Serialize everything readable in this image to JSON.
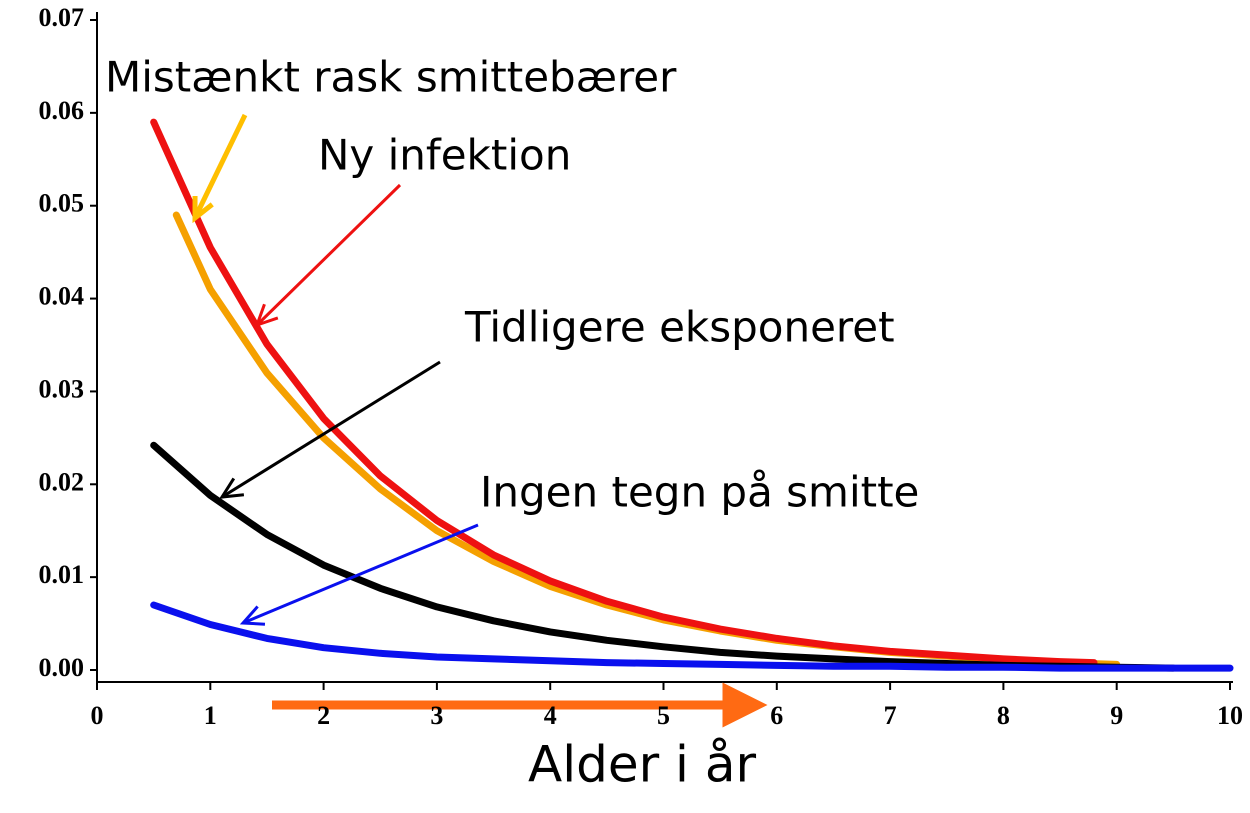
{
  "chart_data": {
    "type": "line",
    "xlabel": "Alder i år",
    "xlim": [
      0,
      10
    ],
    "xticks": [
      0,
      1,
      2,
      3,
      4,
      5,
      6,
      7,
      8,
      9,
      10
    ],
    "ylim": [
      0,
      0.07
    ],
    "yticks": [
      {
        "value": 0,
        "label": "0.00"
      },
      {
        "value": 0.01,
        "label": "0.01"
      },
      {
        "value": 0.02,
        "label": "0.02"
      },
      {
        "value": 0.03,
        "label": "0.03"
      },
      {
        "value": 0.04,
        "label": "0.04"
      },
      {
        "value": 0.05,
        "label": "0.05"
      },
      {
        "value": 0.06,
        "label": "0.06"
      },
      {
        "value": 0.07,
        "label": "0.07"
      }
    ],
    "series": [
      {
        "name": "Mistænkt rask smittebærer",
        "color": "#f5a000",
        "x": [
          0.7,
          1,
          1.5,
          2,
          2.5,
          3,
          3.5,
          4,
          4.5,
          5,
          5.5,
          6,
          6.5,
          7,
          7.5,
          8,
          8.5,
          9
        ],
        "values": [
          0.049,
          0.041,
          0.032,
          0.025,
          0.0195,
          0.015,
          0.0117,
          0.009,
          0.007,
          0.0054,
          0.0042,
          0.0032,
          0.0025,
          0.0019,
          0.0015,
          0.0011,
          0.0008,
          0.0006
        ]
      },
      {
        "name": "Ny infektion",
        "color": "#ee1111",
        "x": [
          0.5,
          1,
          1.5,
          2,
          2.5,
          3,
          3.5,
          4,
          4.5,
          5,
          5.5,
          6,
          6.5,
          7,
          7.5,
          8,
          8.5,
          8.8
        ],
        "values": [
          0.059,
          0.0455,
          0.0351,
          0.0271,
          0.0209,
          0.0161,
          0.0124,
          0.0096,
          0.0074,
          0.0057,
          0.0044,
          0.0034,
          0.0026,
          0.002,
          0.0016,
          0.0012,
          0.0009,
          0.0008
        ]
      },
      {
        "name": "Tidligere eksponeret",
        "color": "#000000",
        "x": [
          0.5,
          1,
          1.5,
          2,
          2.5,
          3,
          3.5,
          4,
          4.5,
          5,
          5.5,
          6,
          6.5,
          7,
          7.5,
          8,
          8.5,
          9,
          9.5
        ],
        "values": [
          0.0242,
          0.0188,
          0.0146,
          0.0113,
          0.0088,
          0.0068,
          0.0053,
          0.0041,
          0.0032,
          0.0025,
          0.0019,
          0.0015,
          0.0012,
          0.0009,
          0.0007,
          0.0005,
          0.0004,
          0.0003,
          0.0002
        ]
      },
      {
        "name": "Ingen tegn på smitte",
        "color": "#0a10ee",
        "x": [
          0.5,
          1,
          1.5,
          2,
          2.5,
          3,
          3.5,
          4,
          4.5,
          5,
          5.5,
          6,
          6.5,
          7,
          7.5,
          8,
          8.5,
          9,
          9.5,
          10
        ],
        "values": [
          0.007,
          0.0049,
          0.0034,
          0.0024,
          0.0018,
          0.0014,
          0.0012,
          0.001,
          0.0008,
          0.0007,
          0.0006,
          0.0005,
          0.0004,
          0.0004,
          0.0003,
          0.0003,
          0.0002,
          0.0002,
          0.0002,
          0.0002
        ]
      }
    ]
  }
}
